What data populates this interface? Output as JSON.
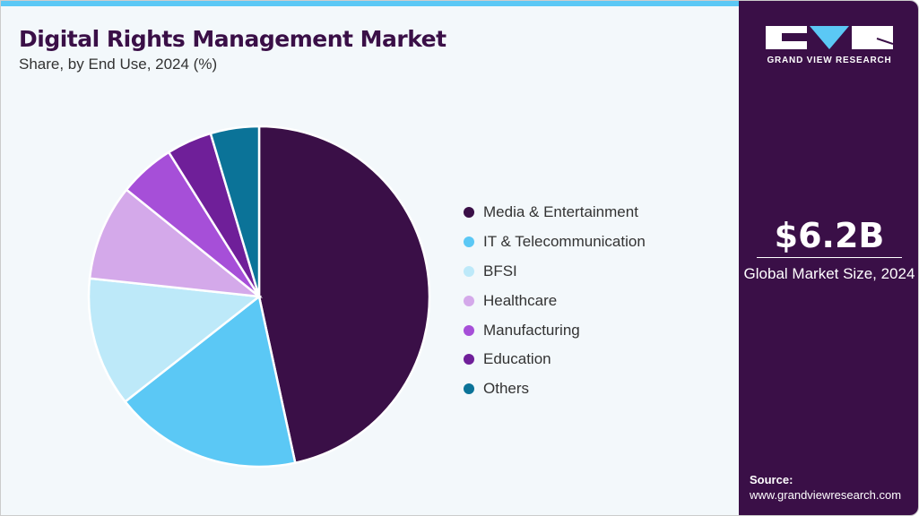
{
  "title": "Digital Rights Management Market",
  "subtitle": "Share, by End Use, 2024 (%)",
  "sidebar": {
    "brand": "GRAND VIEW RESEARCH",
    "market_size": "$6.2B",
    "market_size_label": "Global Market Size, 2024",
    "source_label": "Source:",
    "source_url": "www.grandviewresearch.com"
  },
  "colors": {
    "accent": "#5bc8f5",
    "panel": "#3a0f47"
  },
  "chart_data": {
    "type": "pie",
    "title": "Digital Rights Management Market",
    "categories": [
      "Media & Entertainment",
      "IT & Telecommunication",
      "BFSI",
      "Healthcare",
      "Manufacturing",
      "Education",
      "Others"
    ],
    "values": [
      46.6,
      17.8,
      12.3,
      9.1,
      5.3,
      4.3,
      4.6
    ],
    "colors": [
      "#3a0f47",
      "#5bc8f5",
      "#bde9f9",
      "#d4a9ea",
      "#a64fd8",
      "#6f1f99",
      "#0b7398"
    ],
    "start": "12 o'clock, clockwise",
    "legend": "right"
  }
}
